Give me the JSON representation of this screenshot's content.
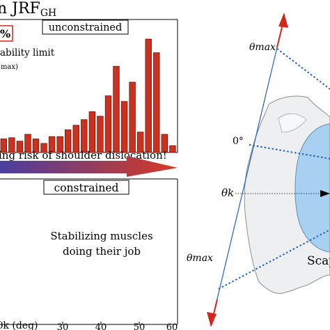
{
  "header": {
    "title_main": "n JRF",
    "title_sub": "GH",
    "percent_box": "%"
  },
  "colors": {
    "bar_fill": "#c8321e",
    "bar_stroke": "#7a1008",
    "arrow_start": "#4a3fa0",
    "arrow_end": "#d83a22",
    "axis_blue": "#1f5fbf",
    "red_axis": "#d0281e",
    "scapula_fill": "#eef0f2",
    "glenoid_fill": "#a9d2f2"
  },
  "icons": {
    "top_arrow": "red-up-arrow-icon",
    "bottom_arrow": "red-down-arrow-icon",
    "risk_arrow": "gradient-right-arrow-icon"
  },
  "annotations": {
    "stability_line1": "ability limit",
    "stability_line2": "max)",
    "risk_text": "ing risk of shoulder dislocation!",
    "stabilizing_line1": "Stabilizing muscles",
    "stabilizing_line2": "doing their job"
  },
  "chart_data": [
    {
      "type": "bar",
      "title": "unconstrained",
      "x": [
        10.4,
        12.5,
        14.6,
        16.7,
        18.8,
        20.9,
        23.0,
        25.1,
        27.2,
        29.3,
        31.4,
        33.5,
        35.6,
        37.7,
        39.8,
        41.9,
        44.0,
        46.1,
        48.2,
        50.3,
        52.4,
        54.5,
        56.6,
        58.7
      ],
      "values": [
        0.06,
        0.07,
        0.12,
        0.13,
        0.1,
        0.16,
        0.12,
        0.08,
        0.14,
        0.14,
        0.2,
        0.24,
        0.29,
        0.36,
        0.32,
        0.5,
        0.76,
        0.45,
        0.62,
        0.18,
        1.0,
        0.88,
        0.16,
        0.06
      ],
      "xlim": [
        10,
        60
      ],
      "ylim": [
        0,
        1.05
      ]
    },
    {
      "type": "bar",
      "title": "constrained",
      "x": [],
      "values": [],
      "xlim": [
        10,
        60
      ],
      "xticks": [
        30,
        40,
        50,
        60
      ],
      "xlabel": "θk (deg)"
    }
  ],
  "diagram": {
    "label_theta_max_top": "θmax",
    "label_zero": "0°",
    "label_theta_k": "θk",
    "label_theta_max_bottom": "θmax",
    "label_scapula": "Scap"
  }
}
